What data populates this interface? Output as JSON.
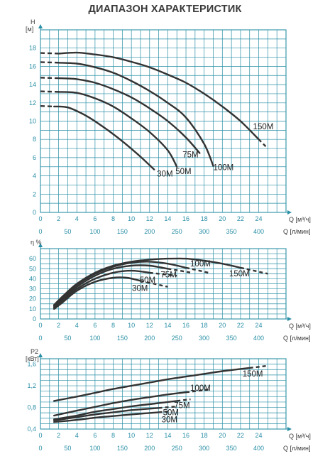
{
  "title": "ДИАПАЗОН ХАРАКТЕРИСТИК",
  "colors": {
    "grid": "#2a8fa6",
    "curve": "#333333",
    "tick": "#2a8fa6"
  },
  "chart_data": [
    {
      "type": "line",
      "ylabel": "H",
      "yunit": "[м]",
      "xlabel": "Q [м³/ч]",
      "xlabel2": "Q [л/мин]",
      "xlim": [
        0,
        27
      ],
      "ylim": [
        0,
        20
      ],
      "xticks": [
        "0",
        "2",
        "4",
        "6",
        "8",
        "10",
        "12",
        "14",
        "16",
        "18",
        "20",
        "22",
        "24"
      ],
      "yticks": [
        "0",
        "2",
        "4",
        "6",
        "8",
        "10",
        "12",
        "14",
        "16",
        "18"
      ],
      "x2ticks": [
        "0",
        "50",
        "100",
        "150",
        "200",
        "250",
        "300",
        "350",
        "400"
      ],
      "series": [
        {
          "name": "30M",
          "dash_x": [
            0,
            1.5
          ],
          "x": [
            1.5,
            3,
            5,
            7,
            9,
            11,
            12.5
          ],
          "y": [
            11.6,
            11.5,
            10.6,
            9.3,
            7.8,
            6.1,
            4.7
          ]
        },
        {
          "name": "50M",
          "dash_x": [
            0,
            2
          ],
          "x": [
            2,
            4,
            6,
            8,
            10,
            12,
            14,
            15
          ],
          "y": [
            13.2,
            13.1,
            12.5,
            11.6,
            10.3,
            8.8,
            6.8,
            5.0
          ]
        },
        {
          "name": "75M",
          "dash_x": [
            0,
            2
          ],
          "x": [
            2,
            4,
            6,
            8,
            10,
            12,
            14,
            16,
            17.5
          ],
          "y": [
            14.7,
            14.6,
            14.2,
            13.5,
            12.6,
            11.4,
            10.0,
            8.2,
            6.5
          ]
        },
        {
          "name": "100M",
          "dash_x": [
            0,
            2
          ],
          "x": [
            2,
            4,
            6,
            8,
            10,
            12,
            14,
            16,
            18,
            19
          ],
          "y": [
            16.4,
            16.3,
            15.9,
            15.3,
            14.4,
            13.3,
            12.0,
            10.4,
            7.5,
            5.1
          ]
        },
        {
          "name": "150M",
          "dash_x": [
            0,
            2
          ],
          "dash_end_x": [
            24,
            25
          ],
          "x": [
            2,
            4,
            6,
            8,
            10,
            12,
            14,
            16,
            18,
            20,
            22,
            24
          ],
          "y": [
            17.4,
            17.5,
            17.3,
            17.0,
            16.5,
            15.9,
            15.1,
            14.2,
            13.0,
            11.6,
            10.0,
            8.0
          ]
        }
      ]
    },
    {
      "type": "line",
      "ylabel": "η %",
      "xlabel": "Q [м³/ч]",
      "xlabel2": "Q [л/мин]",
      "xlim": [
        0,
        27
      ],
      "ylim": [
        0,
        70
      ],
      "xticks": [
        "0",
        "2",
        "4",
        "6",
        "8",
        "10",
        "12",
        "14",
        "16",
        "18",
        "20",
        "22",
        "24"
      ],
      "yticks": [
        "0",
        "10",
        "20",
        "30",
        "40",
        "50",
        "60"
      ],
      "x2ticks": [
        "0",
        "50",
        "100",
        "150",
        "200",
        "250",
        "300",
        "350",
        "400"
      ],
      "series": [
        {
          "name": "30M",
          "dash_end_x": [
            11,
            14
          ],
          "x": [
            1.5,
            2.5,
            4,
            6,
            8,
            9.5,
            11
          ],
          "y": [
            10,
            17,
            28,
            37,
            41,
            41,
            38
          ]
        },
        {
          "name": "50M",
          "dash_end_x": [
            12,
            15
          ],
          "x": [
            1.5,
            2.5,
            4,
            6,
            8,
            10,
            12
          ],
          "y": [
            11,
            19,
            30,
            40,
            46,
            48,
            46
          ]
        },
        {
          "name": "75M",
          "dash_end_x": [
            14,
            16.5
          ],
          "x": [
            1.5,
            2.5,
            4,
            6,
            8,
            10,
            12,
            14
          ],
          "y": [
            12,
            20,
            32,
            43,
            50,
            53,
            53,
            50
          ]
        },
        {
          "name": "100M",
          "dash_end_x": [
            16,
            18.5
          ],
          "x": [
            1.5,
            2.5,
            4,
            6,
            8,
            10,
            12,
            14,
            16
          ],
          "y": [
            13,
            22,
            34,
            45,
            52,
            56,
            57,
            55,
            51
          ]
        },
        {
          "name": "150M",
          "dash_end_x": [
            22,
            25
          ],
          "x": [
            1.5,
            2.5,
            4,
            6,
            8,
            10,
            12,
            14,
            16,
            18,
            20,
            22
          ],
          "y": [
            14,
            23,
            35,
            46,
            53,
            57,
            59,
            60,
            60,
            58,
            55,
            51
          ]
        }
      ]
    },
    {
      "type": "line",
      "ylabel": "P2",
      "yunit": "[кВт]",
      "xlabel": "Q [м³/ч]",
      "xlabel2": "Q [л/мин]",
      "xlim": [
        0,
        27
      ],
      "ylim": [
        0.4,
        1.7
      ],
      "xticks": [
        "0",
        "2",
        "4",
        "6",
        "8",
        "10",
        "12",
        "14",
        "16",
        "18",
        "20",
        "22",
        "24"
      ],
      "yticks": [
        "0,4",
        "0,8",
        "1,2",
        "1,6"
      ],
      "x2ticks": [
        "0",
        "50",
        "100",
        "150",
        "200",
        "250",
        "300",
        "350",
        "400"
      ],
      "series": [
        {
          "name": "30M",
          "dash_end_x": [
            13,
            14
          ],
          "x": [
            1.5,
            4,
            6,
            8,
            10,
            13
          ],
          "y": [
            0.53,
            0.57,
            0.61,
            0.64,
            0.67,
            0.71
          ]
        },
        {
          "name": "50M",
          "dash_end_x": [
            13,
            15
          ],
          "x": [
            1.5,
            4,
            6,
            8,
            10,
            13
          ],
          "y": [
            0.56,
            0.62,
            0.67,
            0.71,
            0.75,
            0.79
          ]
        },
        {
          "name": "75M",
          "dash_end_x": [
            15,
            16.5
          ],
          "x": [
            1.5,
            4,
            6,
            8,
            10,
            12,
            15
          ],
          "y": [
            0.58,
            0.65,
            0.72,
            0.77,
            0.82,
            0.86,
            0.92
          ]
        },
        {
          "name": "100M",
          "dash_end_x": [
            16,
            18.5
          ],
          "x": [
            1.5,
            4,
            6,
            8,
            10,
            12,
            14,
            16
          ],
          "y": [
            0.65,
            0.74,
            0.81,
            0.88,
            0.94,
            0.99,
            1.04,
            1.08
          ]
        },
        {
          "name": "150M",
          "dash_end_x": [
            23,
            25
          ],
          "x": [
            1.5,
            4,
            6,
            8,
            10,
            12,
            14,
            16,
            18,
            20,
            23
          ],
          "y": [
            0.92,
            1.0,
            1.07,
            1.14,
            1.2,
            1.26,
            1.32,
            1.37,
            1.42,
            1.47,
            1.53
          ]
        }
      ]
    }
  ]
}
